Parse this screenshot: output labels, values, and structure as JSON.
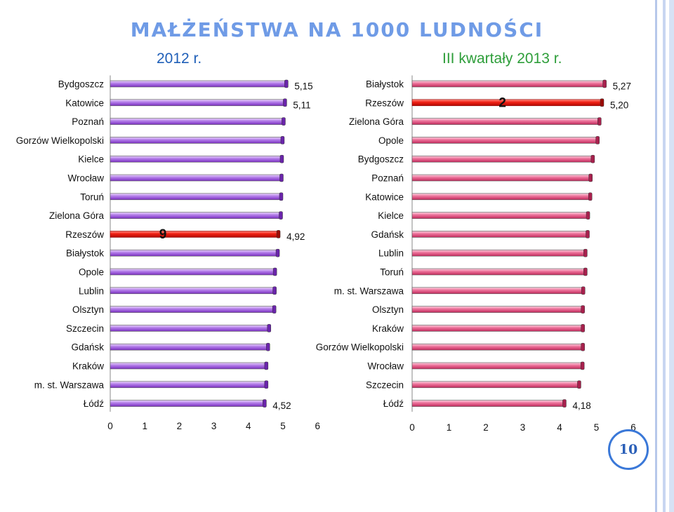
{
  "title": "MAŁŻEŃSTWA  NA 1000  LUDNOŚCI",
  "left_subtitle": "2012 r.",
  "right_subtitle": "III kwartały 2013 r.",
  "page_number": "10",
  "colors": {
    "title": "#6f9be6",
    "left_subtitle": "#1f5fb8",
    "right_subtitle": "#2e9e3a",
    "left_bar": "#9a4fd8",
    "right_bar": "#e0487a",
    "highlight_bar": "#e3120b",
    "badge_border": "#3a78d8"
  },
  "chart_data": [
    {
      "type": "bar",
      "orientation": "horizontal",
      "title": "2012 r.",
      "categories": [
        "Bydgoszcz",
        "Katowice",
        "Poznań",
        "Gorzów Wielkopolski",
        "Kielce",
        "Wrocław",
        "Toruń",
        "Zielona Góra",
        "Rzeszów",
        "Białystok",
        "Opole",
        "Lublin",
        "Olsztyn",
        "Szczecin",
        "Gdańsk",
        "Kraków",
        "m. st. Warszawa",
        "Łódź"
      ],
      "values": [
        5.15,
        5.11,
        5.07,
        5.04,
        5.02,
        5.01,
        5.0,
        4.99,
        4.92,
        4.9,
        4.82,
        4.81,
        4.8,
        4.65,
        4.62,
        4.57,
        4.57,
        4.52
      ],
      "data_labels": [
        {
          "category": "Bydgoszcz",
          "text": "5,15"
        },
        {
          "category": "Katowice",
          "text": "5,11"
        },
        {
          "category": "Rzeszów",
          "text": "4,92"
        },
        {
          "category": "Łódź",
          "text": "4,52"
        }
      ],
      "highlight": {
        "category": "Rzeszów",
        "rank_label": "9"
      },
      "xlim": [
        0,
        6
      ],
      "xticks": [
        "0",
        "1",
        "2",
        "3",
        "4",
        "5",
        "6"
      ],
      "grid": false
    },
    {
      "type": "bar",
      "orientation": "horizontal",
      "title": "III kwartały 2013 r.",
      "categories": [
        "Białystok",
        "Rzeszów",
        "Zielona Góra",
        "Opole",
        "Bydgoszcz",
        "Poznań",
        "Katowice",
        "Kielce",
        "Gdańsk",
        "Lublin",
        "Toruń",
        "m. st. Warszawa",
        "Olsztyn",
        "Kraków",
        "Gorzów Wielkopolski",
        "Wrocław",
        "Szczecin",
        "Łódź"
      ],
      "values": [
        5.27,
        5.2,
        5.13,
        5.08,
        4.95,
        4.89,
        4.88,
        4.82,
        4.81,
        4.75,
        4.75,
        4.69,
        4.68,
        4.68,
        4.68,
        4.67,
        4.58,
        4.18
      ],
      "data_labels": [
        {
          "category": "Białystok",
          "text": "5,27"
        },
        {
          "category": "Rzeszów",
          "text": "5,20"
        },
        {
          "category": "Łódź",
          "text": "4,18"
        }
      ],
      "highlight": {
        "category": "Rzeszów",
        "rank_label": "2"
      },
      "xlim": [
        0,
        6
      ],
      "xticks": [
        "0",
        "1",
        "2",
        "3",
        "4",
        "5",
        "6"
      ],
      "grid": false
    }
  ]
}
